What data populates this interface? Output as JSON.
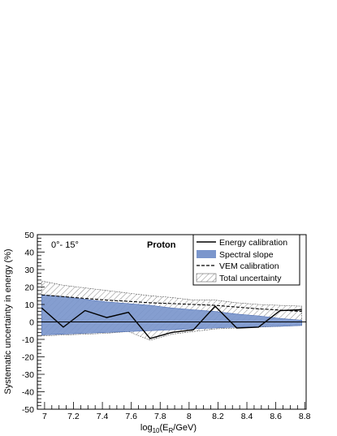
{
  "chart_data": {
    "type": "line",
    "xlabel_parts": {
      "pre": "log",
      "sub1": "10",
      "mid": "(E",
      "sub2": "R",
      "post": "/GeV)"
    },
    "ylabel": "Systematic uncertainty in energy (%)",
    "xlim": [
      6.95,
      8.81
    ],
    "ylim": [
      -50,
      50
    ],
    "xticks": [
      7,
      7.2,
      7.4,
      7.6,
      7.8,
      8,
      8.2,
      8.4,
      8.6,
      8.8
    ],
    "xtick_labels": [
      "7",
      "7.2",
      "7.4",
      "7.6",
      "7.8",
      "8",
      "8.2",
      "8.4",
      "8.6",
      "8.8"
    ],
    "yticks": [
      -50,
      -40,
      -30,
      -20,
      -10,
      0,
      10,
      20,
      30,
      40,
      50
    ],
    "ytick_labels": [
      "-50",
      "-40",
      "-30",
      "-20",
      "-10",
      "0",
      "10",
      "20",
      "30",
      "40",
      "50"
    ],
    "annotations": {
      "angle": "0°- 15°",
      "particle": "Proton"
    },
    "legend": {
      "placement": "top-right",
      "entries": [
        "Energy calibration",
        "Spectral slope",
        "VEM calibration",
        "Total uncertainty"
      ]
    },
    "colors": {
      "spectral": "#7b96cc",
      "spectral_edge": "#4f6fb4",
      "zero_line": "#000000"
    },
    "x": [
      6.98,
      7.13,
      7.28,
      7.43,
      7.58,
      7.73,
      7.88,
      8.03,
      8.18,
      8.33,
      8.48,
      8.63,
      8.78
    ],
    "series": [
      {
        "name": "Energy calibration",
        "style": "solid",
        "values": [
          8,
          -3,
          6.5,
          2.5,
          5.5,
          -9.5,
          -6,
          -4.5,
          9,
          -3.5,
          -3,
          6.5,
          7
        ]
      },
      {
        "name": "VEM calibration",
        "style": "dashed",
        "values": [
          15.5,
          14.5,
          13.5,
          12.5,
          11.8,
          11,
          10.5,
          10,
          9.5,
          8.5,
          7.5,
          6.8,
          6
        ]
      },
      {
        "name": "Spectral slope",
        "style": "band",
        "upper": [
          15.5,
          14.5,
          13,
          11.5,
          10.5,
          9.5,
          8,
          7,
          6,
          4.5,
          3.5,
          2,
          1
        ],
        "lower": [
          -7.5,
          -7,
          -6.5,
          -6,
          -5.5,
          -5,
          -4.5,
          -4,
          -3.5,
          -3,
          -2.8,
          -2.5,
          -2
        ]
      },
      {
        "name": "Total uncertainty",
        "style": "hatched-band",
        "upper": [
          23.5,
          21,
          19.5,
          18,
          16.5,
          15,
          14,
          12.5,
          12.5,
          11,
          10,
          9.5,
          9
        ],
        "lower": [
          -8,
          -7.5,
          -7,
          -6.5,
          -5.5,
          -10.5,
          -7,
          -5.5,
          -4,
          -3.5,
          -3,
          -2.5,
          -2
        ]
      }
    ]
  }
}
